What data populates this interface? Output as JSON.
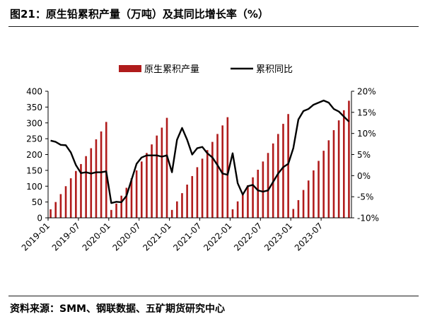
{
  "figure": {
    "title": "图21：原生铅累积产量（万吨）及其同比增长率（%）",
    "source": "资料来源：SMM、钢联数据、五矿期货研究中心"
  },
  "chart_data": {
    "type": "bar+line",
    "x": [
      "2019-01",
      "2019-02",
      "2019-03",
      "2019-04",
      "2019-05",
      "2019-06",
      "2019-07",
      "2019-08",
      "2019-09",
      "2019-10",
      "2019-11",
      "2019-12",
      "2020-01",
      "2020-02",
      "2020-03",
      "2020-04",
      "2020-05",
      "2020-06",
      "2020-07",
      "2020-08",
      "2020-09",
      "2020-10",
      "2020-11",
      "2020-12",
      "2021-01",
      "2021-02",
      "2021-03",
      "2021-04",
      "2021-05",
      "2021-06",
      "2021-07",
      "2021-08",
      "2021-09",
      "2021-10",
      "2021-11",
      "2021-12",
      "2022-01",
      "2022-02",
      "2022-03",
      "2022-04",
      "2022-05",
      "2022-06",
      "2022-07",
      "2022-08",
      "2022-09",
      "2022-10",
      "2022-11",
      "2022-12",
      "2023-01",
      "2023-02",
      "2023-03",
      "2023-04",
      "2023-05",
      "2023-06",
      "2023-07",
      "2023-08",
      "2023-09",
      "2023-10",
      "2023-11",
      "2023-12"
    ],
    "x_tick_labels": [
      "2019-01",
      "2019-07",
      "2020-01",
      "2020-07",
      "2021-01",
      "2021-07",
      "2022-01",
      "2022-07",
      "2023-01",
      "2023-07"
    ],
    "series": [
      {
        "name": "原生累积产量",
        "type": "bar",
        "axis": "left",
        "color": "#b01c1c",
        "values": [
          27,
          50,
          75,
          100,
          125,
          148,
          170,
          195,
          220,
          248,
          273,
          303,
          25,
          45,
          70,
          95,
          125,
          150,
          178,
          205,
          232,
          260,
          285,
          316,
          25,
          52,
          78,
          105,
          132,
          160,
          187,
          214,
          240,
          265,
          292,
          318,
          27,
          52,
          77,
          103,
          128,
          152,
          178,
          205,
          235,
          265,
          297,
          328,
          28,
          56,
          88,
          118,
          150,
          180,
          212,
          245,
          277,
          308,
          340,
          370
        ]
      },
      {
        "name": "累积同比",
        "type": "line",
        "axis": "right",
        "color": "#000000",
        "values": [
          8.3,
          8.0,
          7.3,
          7.2,
          5.5,
          2.5,
          0.6,
          0.8,
          0.5,
          0.8,
          0.8,
          1.0,
          -6.5,
          -6.2,
          -6.3,
          -4.8,
          -1.0,
          2.8,
          4.3,
          4.8,
          4.8,
          4.8,
          4.5,
          4.8,
          0.8,
          8.5,
          11.3,
          8.5,
          5.0,
          6.5,
          6.8,
          5.3,
          4.3,
          2.5,
          0.5,
          0.2,
          5.3,
          -1.8,
          -4.5,
          -2.5,
          -2.2,
          -3.5,
          -3.8,
          -3.5,
          -1.5,
          0.5,
          2.0,
          2.8,
          6.5,
          13.3,
          15.3,
          15.8,
          16.8,
          17.3,
          17.8,
          17.3,
          15.8,
          15.2,
          14.0,
          12.8
        ]
      }
    ],
    "y_left": {
      "min": 0,
      "max": 400,
      "ticks": [
        "0",
        "50",
        "100",
        "150",
        "200",
        "250",
        "300",
        "350",
        "400"
      ]
    },
    "y_right": {
      "min": -10,
      "max": 20,
      "ticks": [
        "-10%",
        "-5%",
        "0%",
        "5%",
        "10%",
        "15%",
        "20%"
      ]
    },
    "legend": "top-center",
    "grid": false
  }
}
